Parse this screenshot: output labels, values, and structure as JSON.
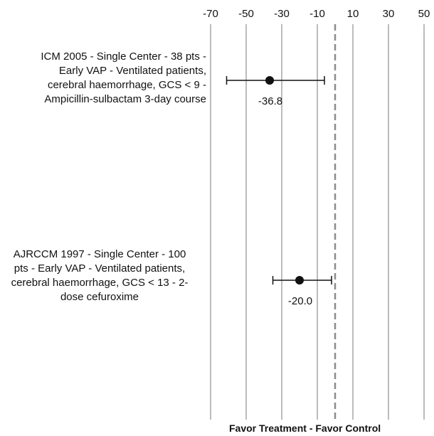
{
  "chart_data": {
    "type": "forest",
    "xlim": [
      -70,
      50
    ],
    "x_ticks": [
      "-70",
      "-50",
      "-30",
      "-10",
      "10",
      "30",
      "50"
    ],
    "x_tick_values": [
      -70,
      -50,
      -30,
      -10,
      10,
      30,
      50
    ],
    "gridlines": [
      -70,
      -50,
      -30,
      -10,
      10,
      30,
      50
    ],
    "reference_line": 0,
    "studies": [
      {
        "label_lines": [
          "ICM 2005 - Single Center - 38 pts -",
          "Early VAP - Ventilated patients,",
          "cerebral haemorrhage, GCS < 9 -",
          "Ampicillin-sulbactam 3-day course"
        ],
        "estimate": -36.8,
        "ci_low": -61,
        "ci_high": -6,
        "value_label": "-36.8"
      },
      {
        "label_lines": [
          "AJRCCM 1997 - Single Center - 100",
          "pts - Early VAP - Ventilated patients,",
          "cerebral haemorrhage, GCS < 13 - 2-",
          "dose cefuroxime"
        ],
        "estimate": -20.0,
        "ci_low": -35,
        "ci_high": -2,
        "value_label": "-20.0"
      }
    ],
    "footer": "Favor Treatment - Favor Control"
  }
}
